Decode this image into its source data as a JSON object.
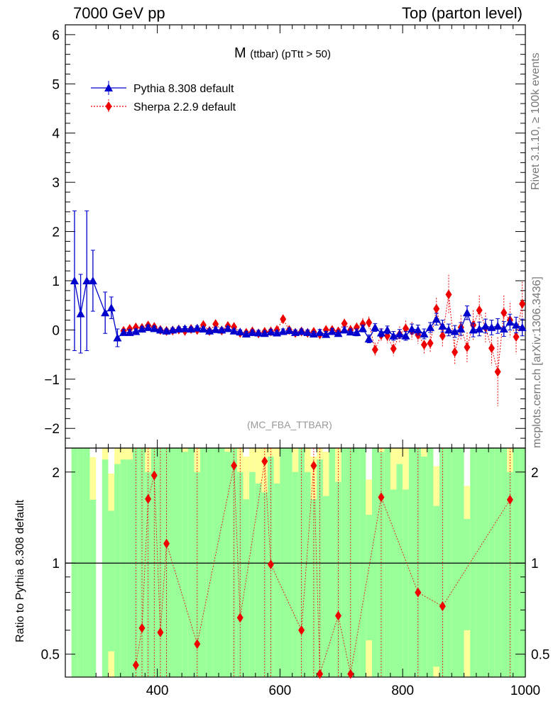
{
  "header": {
    "left": "7000 GeV pp",
    "right": "Top (parton level)"
  },
  "title_main": "M",
  "title_sub": "(ttbar) (pTtt > 50)",
  "watermark": "(MC_FBA_TTBAR)",
  "side_labels": {
    "rivet": "Rivet 3.1.10, ≥ 100k events",
    "mcplots": "mcplots.cern.ch [arXiv:1306.3436]"
  },
  "ratio_ylabel": "Ratio to Pythia 8.308 default",
  "colors": {
    "pythia": "#0000cc",
    "sherpa": "#ee0000",
    "band_green": "#99ff99",
    "band_yellow": "#ffff99"
  },
  "chart_data": [
    {
      "type": "line",
      "title": "M (ttbar) (pTtt > 50)",
      "xlim": [
        250,
        1000
      ],
      "ylim": [
        -2.4,
        6.2
      ],
      "x_ticks": [
        400,
        600,
        800,
        1000
      ],
      "y_ticks": [
        -2,
        -1,
        0,
        1,
        2,
        3,
        4,
        5,
        6
      ],
      "legend_position": "top-left",
      "series": [
        {
          "name": "Pythia 8.308 default",
          "marker": "triangle",
          "x": [
            265,
            275,
            285,
            295,
            315,
            325,
            335,
            345,
            355,
            365,
            375,
            385,
            395,
            405,
            415,
            425,
            435,
            445,
            455,
            465,
            475,
            485,
            495,
            505,
            515,
            525,
            535,
            545,
            555,
            565,
            575,
            585,
            595,
            605,
            615,
            625,
            635,
            645,
            655,
            665,
            675,
            685,
            695,
            705,
            715,
            725,
            735,
            745,
            755,
            765,
            775,
            785,
            795,
            805,
            815,
            825,
            835,
            845,
            855,
            865,
            875,
            885,
            895,
            905,
            915,
            925,
            935,
            945,
            955,
            965,
            975,
            985,
            995
          ],
          "y": [
            1.0,
            0.33,
            1.0,
            1.0,
            0.35,
            0.45,
            -0.16,
            -0.05,
            -0.05,
            -0.03,
            0.02,
            0.05,
            0.03,
            0.0,
            -0.02,
            0.0,
            0.02,
            0.03,
            0.02,
            0.04,
            0.02,
            -0.02,
            0.01,
            0.0,
            0.03,
            -0.02,
            -0.04,
            -0.08,
            -0.05,
            -0.06,
            -0.07,
            -0.04,
            -0.06,
            -0.03,
            -0.01,
            -0.05,
            -0.03,
            -0.05,
            -0.08,
            -0.05,
            -0.09,
            -0.03,
            -0.07,
            0.0,
            -0.04,
            -0.05,
            0.03,
            -0.18,
            0.05,
            -0.06,
            0.0,
            -0.12,
            -0.08,
            -0.12,
            0.02,
            0.0,
            -0.08,
            0.05,
            0.22,
            0.08,
            0.0,
            -0.03,
            0.02,
            0.35,
            0.0,
            0.02,
            0.08,
            0.05,
            0.08,
            0.02,
            0.16,
            0.1,
            0.05
          ],
          "err": [
            1.42,
            0.8,
            1.42,
            0.62,
            0.42,
            0.22,
            0.18,
            0.06,
            0.06,
            0.05,
            0.05,
            0.05,
            0.05,
            0.04,
            0.04,
            0.04,
            0.04,
            0.04,
            0.04,
            0.04,
            0.04,
            0.04,
            0.04,
            0.04,
            0.04,
            0.04,
            0.04,
            0.05,
            0.05,
            0.05,
            0.05,
            0.05,
            0.05,
            0.05,
            0.05,
            0.05,
            0.05,
            0.05,
            0.05,
            0.06,
            0.06,
            0.06,
            0.06,
            0.06,
            0.06,
            0.07,
            0.07,
            0.08,
            0.08,
            0.08,
            0.08,
            0.09,
            0.09,
            0.09,
            0.1,
            0.1,
            0.1,
            0.1,
            0.12,
            0.12,
            0.12,
            0.12,
            0.13,
            0.14,
            0.14,
            0.14,
            0.14,
            0.15,
            0.15,
            0.15,
            0.16,
            0.16,
            0.17
          ]
        },
        {
          "name": "Sherpa 2.2.9 default",
          "marker": "diamond",
          "x": [
            345,
            355,
            365,
            375,
            385,
            395,
            405,
            415,
            425,
            435,
            445,
            455,
            465,
            475,
            485,
            495,
            505,
            515,
            525,
            535,
            545,
            555,
            565,
            575,
            585,
            595,
            605,
            615,
            625,
            635,
            645,
            655,
            665,
            675,
            685,
            695,
            705,
            715,
            725,
            735,
            745,
            755,
            765,
            775,
            785,
            795,
            805,
            815,
            825,
            835,
            845,
            855,
            865,
            875,
            885,
            895,
            905,
            915,
            925,
            935,
            945,
            955,
            965,
            975,
            985,
            995
          ],
          "y": [
            -0.02,
            0.02,
            0.05,
            0.04,
            0.09,
            0.06,
            0.0,
            -0.02,
            -0.01,
            0.01,
            -0.02,
            0.02,
            0.0,
            0.1,
            -0.02,
            0.12,
            -0.01,
            0.08,
            0.06,
            -0.06,
            -0.06,
            -0.03,
            -0.07,
            -0.04,
            -0.03,
            0.0,
            0.22,
            0.0,
            -0.06,
            -0.03,
            -0.06,
            -0.04,
            -0.09,
            0.0,
            0.0,
            -0.03,
            0.13,
            0.0,
            0.05,
            0.12,
            0.15,
            -0.4,
            -0.1,
            -0.12,
            -0.38,
            -0.09,
            0.03,
            -0.02,
            -0.1,
            -0.3,
            -0.27,
            0.43,
            -0.12,
            0.72,
            -0.45,
            0.05,
            -0.35,
            0.1,
            0.4,
            0.05,
            -0.37,
            -0.85,
            0.35,
            0.2,
            -0.14,
            0.53
          ],
          "err": [
            0.05,
            0.05,
            0.05,
            0.05,
            0.05,
            0.05,
            0.05,
            0.05,
            0.05,
            0.05,
            0.05,
            0.05,
            0.05,
            0.05,
            0.05,
            0.06,
            0.06,
            0.06,
            0.06,
            0.06,
            0.06,
            0.06,
            0.06,
            0.07,
            0.07,
            0.07,
            0.08,
            0.08,
            0.08,
            0.08,
            0.08,
            0.08,
            0.08,
            0.09,
            0.09,
            0.09,
            0.1,
            0.1,
            0.1,
            0.12,
            0.12,
            0.14,
            0.14,
            0.15,
            0.15,
            0.16,
            0.16,
            0.18,
            0.18,
            0.2,
            0.2,
            0.22,
            0.22,
            0.4,
            0.25,
            0.25,
            0.3,
            0.3,
            0.3,
            0.3,
            0.35,
            0.7,
            0.35,
            0.35,
            0.35,
            0.45
          ]
        }
      ]
    },
    {
      "type": "line",
      "ylabel": "Ratio to Pythia 8.308 default",
      "xlim": [
        250,
        1000
      ],
      "ylim": [
        0.42,
        2.4
      ],
      "log_y": true,
      "x_ticks": [
        400,
        600,
        800,
        1000
      ],
      "y_ticks": [
        0.5,
        1,
        2
      ],
      "series": [
        {
          "name": "Sherpa 2.2.9 default",
          "x": [
            365,
            375,
            385,
            395,
            405,
            415,
            465,
            525,
            535,
            575,
            585,
            635,
            655,
            665,
            695,
            715,
            765,
            825,
            865,
            975
          ],
          "y": [
            0.46,
            0.61,
            1.63,
            1.95,
            0.59,
            1.16,
            0.54,
            2.1,
            0.66,
            2.17,
            0.99,
            0.6,
            2.1,
            0.43,
            0.67,
            0.43,
            1.65,
            0.8,
            0.72,
            1.62
          ]
        }
      ]
    }
  ]
}
